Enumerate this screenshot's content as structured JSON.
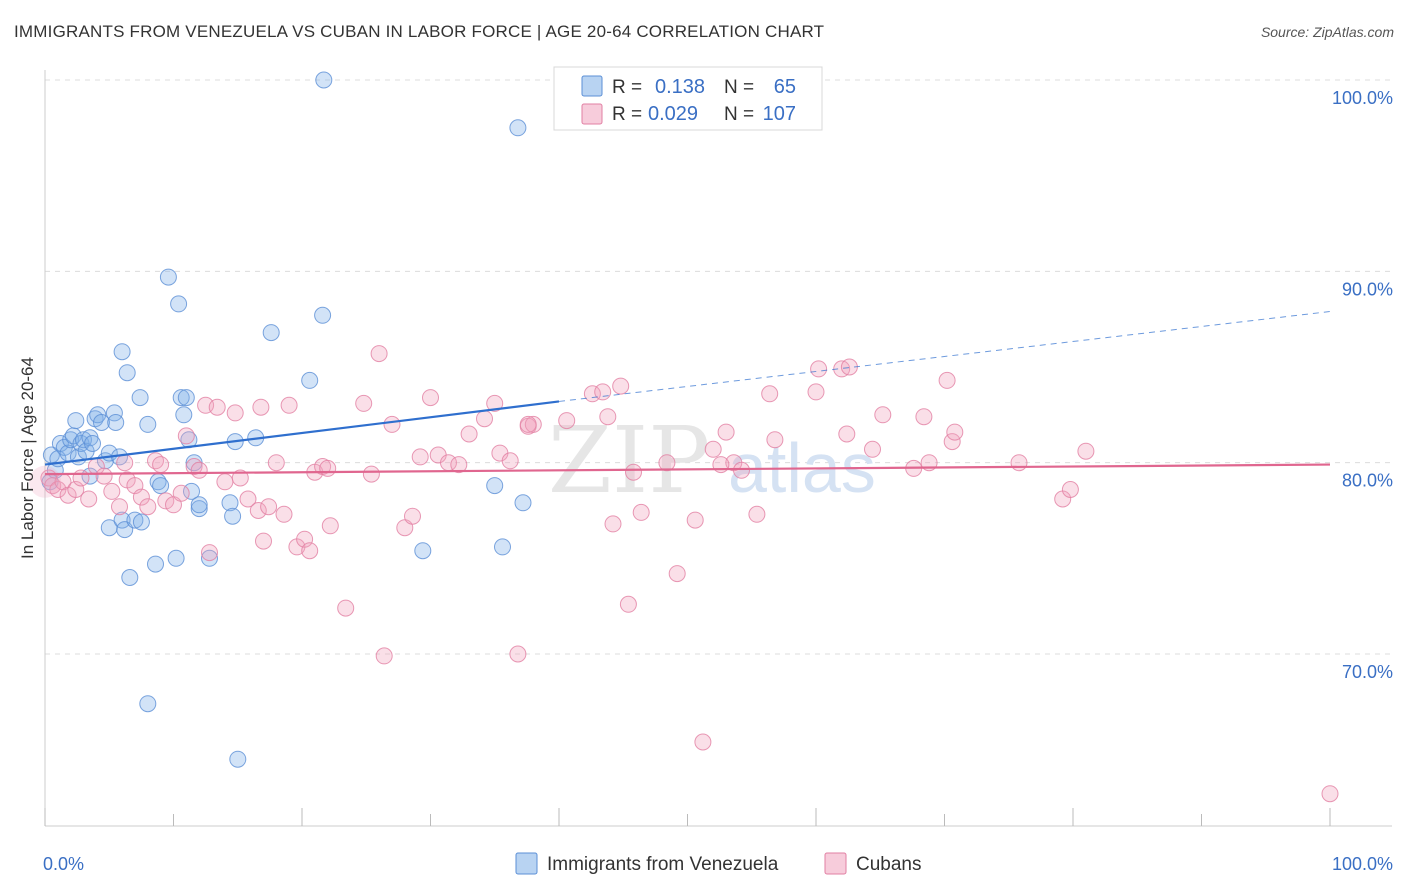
{
  "header": {
    "title": "IMMIGRANTS FROM VENEZUELA VS CUBAN IN LABOR FORCE | AGE 20-64 CORRELATION CHART",
    "source": "Source: ZipAtlas.com"
  },
  "watermark": {
    "zip": "ZIP",
    "atlas": "atlas"
  },
  "stats_legend": {
    "rows": [
      {
        "r_label": "R =",
        "r_value": "0.138",
        "n_label": "N =",
        "n_value": "65",
        "color": "#7eaee8"
      },
      {
        "r_label": "R =",
        "r_value": "0.029",
        "n_label": "N =",
        "n_value": "107",
        "color": "#f0a3be"
      }
    ]
  },
  "chart_data": {
    "type": "scatter",
    "ylabel": "In Labor Force | Age 20-64",
    "xlim": [
      0,
      100
    ],
    "ylim": [
      61.5,
      101.5
    ],
    "x_tick_labels": [
      {
        "value": 0,
        "label": "0.0%"
      },
      {
        "value": 100,
        "label": "100.0%"
      }
    ],
    "y_tick_labels": [
      {
        "value": 100,
        "label": "100.0%"
      },
      {
        "value": 90,
        "label": "90.0%"
      },
      {
        "value": 80,
        "label": "80.0%"
      },
      {
        "value": 70,
        "label": "70.0%"
      }
    ],
    "grid": true,
    "legend_position": "bottom",
    "series": [
      {
        "name": "Immigrants from Venezuela",
        "color": "#7eaee8",
        "stroke": "#5b8fd6",
        "trend": {
          "x0": 0.0,
          "y0": 79.9,
          "x1": 40.0,
          "y1": 83.2,
          "extend_to_x": 100.0,
          "extend_y": 87.9,
          "color": "#2f6fce"
        },
        "points": [
          [
            0.5,
            80.4
          ],
          [
            0.8,
            79.6
          ],
          [
            1.0,
            80.2
          ],
          [
            1.2,
            81.0
          ],
          [
            1.5,
            80.8
          ],
          [
            1.8,
            80.5
          ],
          [
            2.0,
            81.2
          ],
          [
            2.2,
            81.4
          ],
          [
            2.4,
            82.2
          ],
          [
            2.6,
            80.3
          ],
          [
            2.8,
            81.0
          ],
          [
            3.0,
            81.2
          ],
          [
            3.2,
            80.6
          ],
          [
            3.5,
            81.3
          ],
          [
            3.7,
            81.0
          ],
          [
            3.9,
            82.3
          ],
          [
            4.1,
            82.5
          ],
          [
            4.4,
            82.1
          ],
          [
            4.7,
            80.1
          ],
          [
            5.0,
            80.5
          ],
          [
            5.4,
            82.6
          ],
          [
            5.5,
            82.1
          ],
          [
            5.8,
            80.3
          ],
          [
            6.0,
            85.8
          ],
          [
            6.4,
            84.7
          ],
          [
            7.4,
            83.4
          ],
          [
            8.0,
            82.0
          ],
          [
            9.6,
            89.7
          ],
          [
            10.4,
            88.3
          ],
          [
            10.6,
            83.4
          ],
          [
            10.8,
            82.5
          ],
          [
            11.0,
            83.4
          ],
          [
            11.2,
            81.2
          ],
          [
            11.4,
            78.5
          ],
          [
            11.6,
            80.0
          ],
          [
            12.0,
            77.6
          ],
          [
            5.0,
            76.6
          ],
          [
            6.0,
            77.0
          ],
          [
            6.2,
            76.5
          ],
          [
            7.0,
            77.0
          ],
          [
            7.5,
            76.9
          ],
          [
            8.8,
            79.0
          ],
          [
            6.6,
            74.0
          ],
          [
            8.6,
            74.7
          ],
          [
            10.2,
            75.0
          ],
          [
            12.8,
            75.0
          ],
          [
            14.4,
            77.9
          ],
          [
            14.6,
            77.2
          ],
          [
            14.8,
            81.1
          ],
          [
            16.4,
            81.3
          ],
          [
            17.6,
            86.8
          ],
          [
            20.6,
            84.3
          ],
          [
            21.6,
            87.7
          ],
          [
            21.7,
            100.0
          ],
          [
            36.8,
            97.5
          ],
          [
            29.4,
            75.4
          ],
          [
            35.0,
            78.8
          ],
          [
            37.2,
            77.9
          ],
          [
            35.6,
            75.6
          ],
          [
            8.0,
            67.4
          ],
          [
            15.0,
            64.5
          ],
          [
            9.0,
            78.8
          ],
          [
            12.0,
            77.8
          ],
          [
            3.5,
            79.3
          ],
          [
            0.4,
            79.0
          ]
        ]
      },
      {
        "name": "Cubans",
        "color": "#f0a3be",
        "stroke": "#e27fa3",
        "trend": {
          "x0": 0.0,
          "y0": 79.4,
          "x1": 100.0,
          "y1": 79.9,
          "color": "#e0668f"
        },
        "points": [
          [
            0.3,
            79.2
          ],
          [
            0.6,
            78.8
          ],
          [
            1.0,
            78.6
          ],
          [
            1.4,
            79.0
          ],
          [
            1.8,
            78.3
          ],
          [
            2.4,
            78.6
          ],
          [
            2.8,
            79.2
          ],
          [
            3.4,
            78.1
          ],
          [
            4.0,
            79.8
          ],
          [
            4.6,
            79.3
          ],
          [
            5.2,
            78.5
          ],
          [
            5.8,
            77.7
          ],
          [
            6.2,
            80.0
          ],
          [
            6.4,
            79.1
          ],
          [
            7.0,
            78.8
          ],
          [
            7.5,
            78.2
          ],
          [
            8.0,
            77.7
          ],
          [
            8.6,
            80.1
          ],
          [
            9.0,
            79.9
          ],
          [
            9.4,
            78.0
          ],
          [
            10.0,
            77.8
          ],
          [
            10.6,
            78.4
          ],
          [
            11.0,
            81.4
          ],
          [
            11.6,
            79.8
          ],
          [
            12.0,
            79.6
          ],
          [
            12.5,
            83.0
          ],
          [
            12.8,
            75.3
          ],
          [
            13.4,
            82.9
          ],
          [
            14.0,
            79.0
          ],
          [
            14.8,
            82.6
          ],
          [
            15.2,
            79.2
          ],
          [
            15.8,
            78.1
          ],
          [
            16.6,
            77.5
          ],
          [
            17.0,
            75.9
          ],
          [
            17.4,
            77.7
          ],
          [
            18.0,
            80.0
          ],
          [
            18.6,
            77.3
          ],
          [
            19.0,
            83.0
          ],
          [
            19.6,
            75.6
          ],
          [
            20.2,
            76.0
          ],
          [
            20.6,
            75.4
          ],
          [
            21.0,
            79.5
          ],
          [
            21.6,
            79.8
          ],
          [
            22.2,
            76.7
          ],
          [
            23.4,
            72.4
          ],
          [
            24.8,
            83.1
          ],
          [
            25.4,
            79.4
          ],
          [
            26.0,
            85.7
          ],
          [
            26.4,
            69.9
          ],
          [
            27.0,
            82.0
          ],
          [
            28.0,
            76.6
          ],
          [
            28.6,
            77.2
          ],
          [
            29.2,
            80.3
          ],
          [
            30.0,
            83.4
          ],
          [
            30.6,
            80.4
          ],
          [
            31.4,
            80.0
          ],
          [
            32.2,
            79.9
          ],
          [
            33.0,
            81.5
          ],
          [
            34.2,
            82.3
          ],
          [
            35.0,
            83.1
          ],
          [
            35.4,
            80.5
          ],
          [
            36.2,
            80.1
          ],
          [
            36.8,
            70.0
          ],
          [
            37.6,
            81.9
          ],
          [
            38.0,
            82.0
          ],
          [
            40.6,
            82.2
          ],
          [
            42.6,
            83.6
          ],
          [
            43.4,
            83.7
          ],
          [
            43.8,
            82.4
          ],
          [
            44.2,
            76.8
          ],
          [
            44.8,
            84.0
          ],
          [
            45.4,
            72.6
          ],
          [
            45.8,
            79.5
          ],
          [
            46.4,
            77.4
          ],
          [
            48.4,
            80.0
          ],
          [
            49.2,
            74.2
          ],
          [
            50.6,
            77.0
          ],
          [
            51.2,
            65.4
          ],
          [
            52.0,
            80.7
          ],
          [
            53.0,
            81.6
          ],
          [
            53.6,
            80.0
          ],
          [
            54.2,
            79.6
          ],
          [
            55.4,
            77.3
          ],
          [
            56.4,
            83.6
          ],
          [
            56.8,
            81.2
          ],
          [
            60.0,
            83.7
          ],
          [
            62.0,
            84.9
          ],
          [
            62.6,
            85.0
          ],
          [
            62.4,
            81.5
          ],
          [
            64.4,
            80.7
          ],
          [
            65.2,
            82.5
          ],
          [
            67.6,
            79.7
          ],
          [
            68.4,
            82.4
          ],
          [
            68.8,
            80.0
          ],
          [
            70.2,
            84.3
          ],
          [
            70.6,
            81.1
          ],
          [
            70.8,
            81.6
          ],
          [
            75.8,
            80.0
          ],
          [
            79.2,
            78.1
          ],
          [
            79.8,
            78.6
          ],
          [
            81.0,
            80.6
          ],
          [
            100.0,
            62.7
          ],
          [
            37.6,
            82.0
          ],
          [
            22.0,
            79.7
          ],
          [
            16.8,
            82.9
          ],
          [
            52.6,
            79.9
          ],
          [
            60.2,
            84.9
          ]
        ]
      }
    ]
  }
}
